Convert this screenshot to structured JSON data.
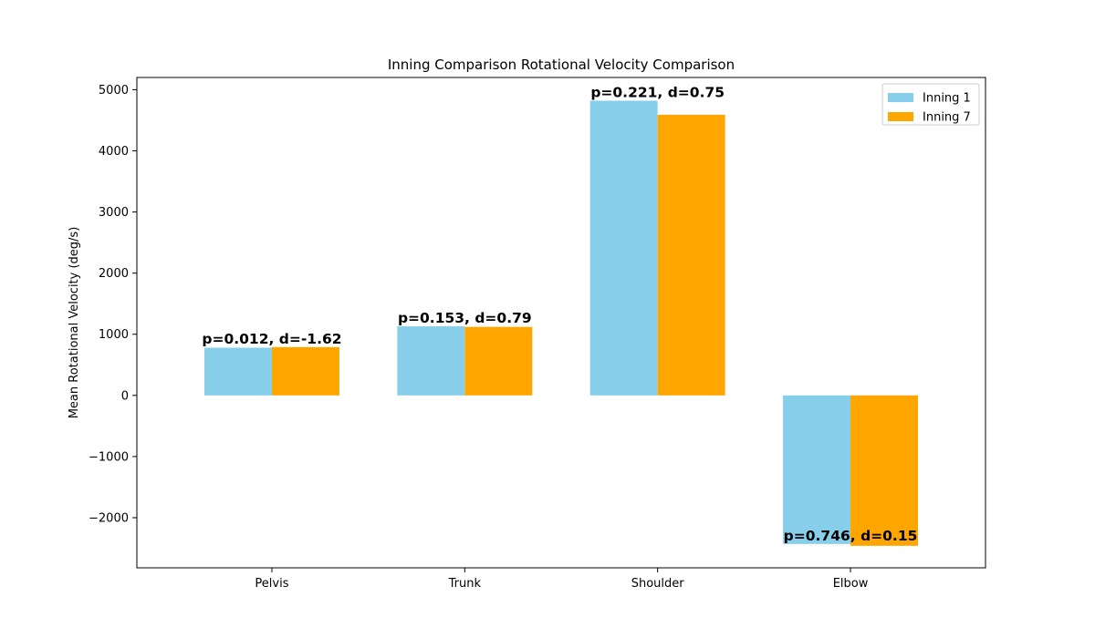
{
  "chart_data": {
    "type": "bar",
    "title": "Inning Comparison Rotational Velocity Comparison",
    "xlabel": "",
    "ylabel": "Mean Rotational Velocity (deg/s)",
    "categories": [
      "Pelvis",
      "Trunk",
      "Shoulder",
      "Elbow"
    ],
    "series": [
      {
        "name": "Inning 1",
        "color": "#87ceeb",
        "values": [
          780,
          1130,
          4820,
          -2430
        ]
      },
      {
        "name": "Inning 7",
        "color": "#ffa500",
        "values": [
          790,
          1120,
          4590,
          -2460
        ]
      }
    ],
    "annotations": [
      "p=0.012, d=-1.62",
      "p=0.153, d=0.79",
      "p=0.221, d=0.75",
      "p=0.746, d=0.15"
    ],
    "ylim": [
      -2820,
      5200
    ],
    "yticks": [
      -2000,
      -1000,
      0,
      1000,
      2000,
      3000,
      4000,
      5000
    ],
    "ytick_labels": [
      "−2000",
      "−1000",
      "0",
      "1000",
      "2000",
      "3000",
      "4000",
      "5000"
    ],
    "grid": false,
    "legend_position": "top-right"
  }
}
